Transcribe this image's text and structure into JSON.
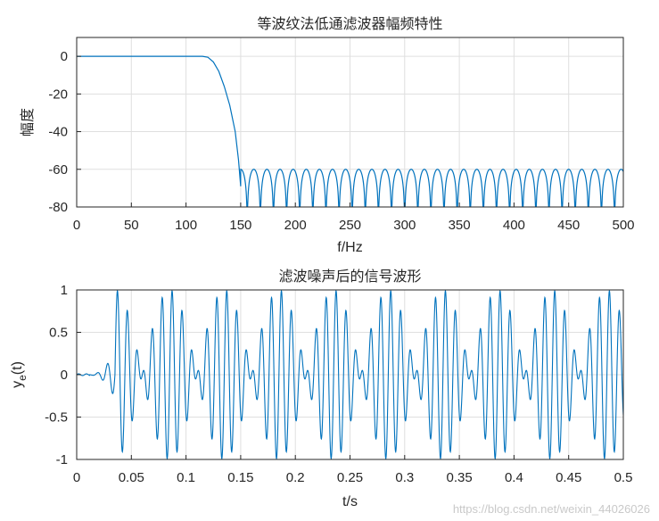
{
  "chart_data": [
    {
      "type": "line",
      "title": "等波纹法低通滤波器幅频特性",
      "xlabel": "f/Hz",
      "ylabel": "幅度",
      "xlim": [
        0,
        500
      ],
      "ylim": [
        -80,
        10
      ],
      "xticks": [
        "0",
        "50",
        "100",
        "150",
        "200",
        "250",
        "300",
        "350",
        "400",
        "450",
        "500"
      ],
      "yticks": [
        "0",
        "-20",
        "-40",
        "-60",
        "-80"
      ],
      "grid": true,
      "series": [
        {
          "passband_edge_hz": 120,
          "stopband_edge_hz": 150,
          "passband_level_db": 0,
          "stopband_peak_db": -60,
          "stopband_ripple_period_hz": 12,
          "points": [
            [
              0,
              0
            ],
            [
              50,
              0
            ],
            [
              100,
              0
            ],
            [
              115,
              0
            ],
            [
              120,
              -0.5
            ],
            [
              125,
              -3
            ],
            [
              130,
              -8
            ],
            [
              135,
              -16
            ],
            [
              140,
              -26
            ],
            [
              145,
              -40
            ],
            [
              148,
              -55
            ],
            [
              150,
              -69
            ]
          ]
        }
      ]
    },
    {
      "type": "line",
      "title": "滤波噪声后的信号波形",
      "xlabel": "t/s",
      "ylabel": "y",
      "ylabel_sub": "e",
      "ylabel_suffix": "(t)",
      "xlim": [
        0,
        0.5
      ],
      "ylim": [
        -1,
        1
      ],
      "xticks": [
        "0",
        "0.05",
        "0.1",
        "0.15",
        "0.2",
        "0.25",
        "0.3",
        "0.35",
        "0.4",
        "0.45",
        "0.5"
      ],
      "yticks": [
        "1",
        "0.5",
        "0",
        "-0.5",
        "-1"
      ],
      "grid": true,
      "series": [
        {
          "component_freqs_hz": [
            100,
            120
          ],
          "component_amplitude": 0.5,
          "onset_s": 0.035,
          "peak": 1.0,
          "trough": -1.0
        }
      ]
    }
  ],
  "colors": {
    "line": "#0072bd",
    "grid": "#dfdfdf",
    "axis": "#262626"
  },
  "watermark": "https://blog.csdn.net/weixin_44026026"
}
